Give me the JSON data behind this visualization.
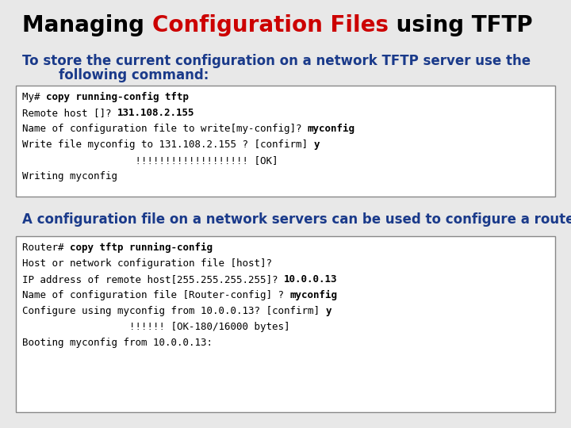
{
  "title_parts": [
    {
      "text": "Managing ",
      "color": "#000000",
      "bold": true
    },
    {
      "text": "Configuration Files",
      "color": "#cc0000",
      "bold": true
    },
    {
      "text": " using TFTP",
      "color": "#000000",
      "bold": true
    }
  ],
  "subtitle1_line1": "To store the current configuration on a network TFTP server use the",
  "subtitle1_line2": "        following command:",
  "subtitle2": "A configuration file on a network servers can be used to configure a router:",
  "subtitle_color": "#1a3a8a",
  "bg_color": "#e8e8e8",
  "box1_lines": [
    [
      {
        "text": "My# ",
        "bold": false
      },
      {
        "text": "copy running-config tftp",
        "bold": true
      }
    ],
    [
      {
        "text": "Remote host []? ",
        "bold": false
      },
      {
        "text": "131.108.2.155",
        "bold": true
      }
    ],
    [
      {
        "text": "Name of configuration file to write[my-config]? ",
        "bold": false
      },
      {
        "text": "myconfig",
        "bold": true
      }
    ],
    [
      {
        "text": "Write file myconfig to 131.108.2.155 ? [confirm] ",
        "bold": false
      },
      {
        "text": "y",
        "bold": true
      }
    ],
    [
      {
        "text": "                   !!!!!!!!!!!!!!!!!!! [OK]",
        "bold": false
      }
    ],
    [
      {
        "text": "Writing myconfig",
        "bold": false
      }
    ]
  ],
  "box2_lines": [
    [
      {
        "text": "Router# ",
        "bold": false
      },
      {
        "text": "copy tftp running-config",
        "bold": true
      }
    ],
    [
      {
        "text": "Host or network configuration file [host]?",
        "bold": false
      }
    ],
    [
      {
        "text": "IP address of remote host[255.255.255.255]? ",
        "bold": false
      },
      {
        "text": "10.0.0.13",
        "bold": true
      }
    ],
    [
      {
        "text": "Name of configuration file [Router-config] ? ",
        "bold": false
      },
      {
        "text": "myconfig",
        "bold": true
      }
    ],
    [
      {
        "text": "Configure using myconfig from 10.0.0.13? [confirm] ",
        "bold": false
      },
      {
        "text": "y",
        "bold": true
      }
    ],
    [
      {
        "text": "                  !!!!!! [OK-180/16000 bytes]",
        "bold": false
      }
    ],
    [
      {
        "text": "Booting myconfig from 10.0.0.13:",
        "bold": false
      }
    ]
  ],
  "font_size_title": 20,
  "font_size_subtitle": 12,
  "font_size_code": 9,
  "box_bg": "#ffffff",
  "box_border": "#888888"
}
